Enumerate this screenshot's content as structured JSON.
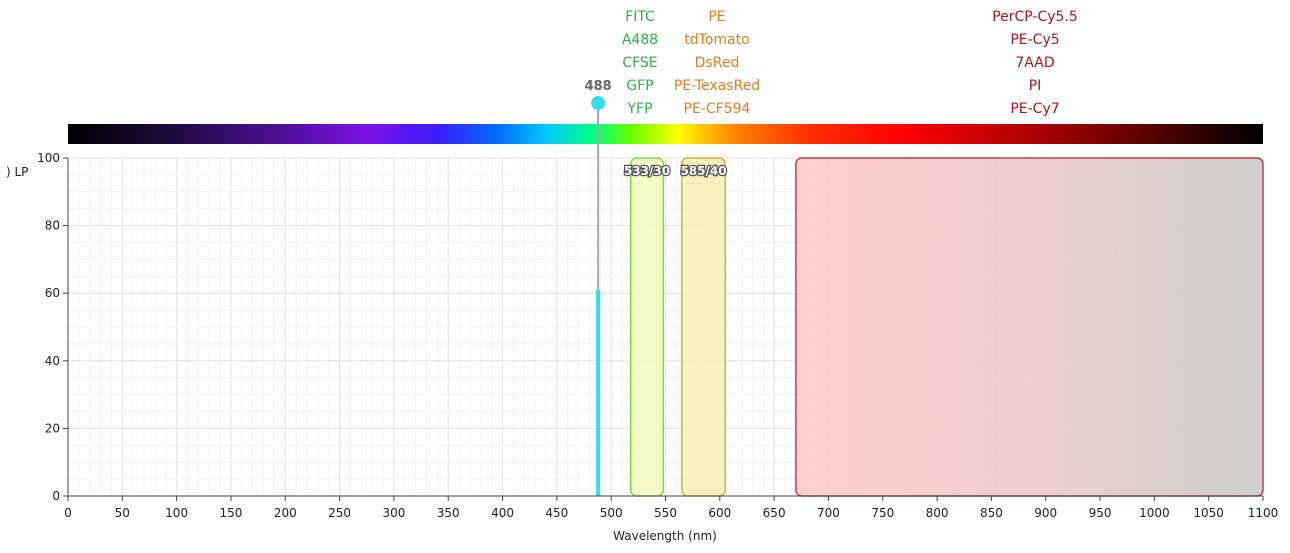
{
  "chart_data": {
    "type": "area",
    "xlabel": "Wavelength (nm)",
    "ylabel_fragment": ") LP",
    "xlim": [
      0,
      1100
    ],
    "ylim": [
      0,
      100
    ],
    "x_ticks": [
      0,
      50,
      100,
      150,
      200,
      250,
      300,
      350,
      400,
      450,
      500,
      550,
      600,
      650,
      700,
      750,
      800,
      850,
      900,
      950,
      1000,
      1050,
      1100
    ],
    "y_ticks": [
      0,
      20,
      40,
      60,
      80,
      100
    ],
    "grid": true,
    "spectrum_bar": {
      "colors": [
        "#000000",
        "#1c0a3a",
        "#4a0f8f",
        "#7a12e6",
        "#3a1cff",
        "#006eff",
        "#00c8ff",
        "#00ff80",
        "#66ff00",
        "#d4ff00",
        "#ffff00",
        "#ffc800",
        "#ff8000",
        "#ff3000",
        "#ff0000",
        "#c80000",
        "#8a0000",
        "#4a0000",
        "#000000"
      ],
      "stops": [
        0,
        0.08,
        0.17,
        0.25,
        0.31,
        0.36,
        0.4,
        0.44,
        0.47,
        0.5,
        0.51,
        0.53,
        0.56,
        0.62,
        0.7,
        0.77,
        0.85,
        0.92,
        1
      ]
    },
    "laser": {
      "wavelength": 488,
      "label": "488",
      "power": 61,
      "color": "#33ddee"
    },
    "filters": [
      {
        "label": "533/30",
        "center": 533,
        "bandwidth": 30,
        "fill": "#f2fbc0",
        "stroke": "#7cd84a"
      },
      {
        "label": "585/40",
        "center": 585,
        "bandwidth": 40,
        "fill": "#f8efb6",
        "stroke": "#c9b53a"
      },
      {
        "label": "",
        "start": 670,
        "end": 1100,
        "type": "longpass",
        "stroke": "#c0423a"
      }
    ],
    "fluorochrome_groups": [
      {
        "color": "#2db24a",
        "names": [
          "FITC",
          "A488",
          "CFSE",
          "GFP",
          "YFP"
        ]
      },
      {
        "color": "#ea7a1a",
        "names": [
          "PE",
          "tdTomato",
          "DsRed",
          "PE-TexasRed",
          "PE-CF594"
        ]
      },
      {
        "color": "#b3121a",
        "names": [
          "PerCP-Cy5.5",
          "PE-Cy5",
          "7AAD",
          "PI",
          "PE-Cy7"
        ]
      }
    ]
  }
}
